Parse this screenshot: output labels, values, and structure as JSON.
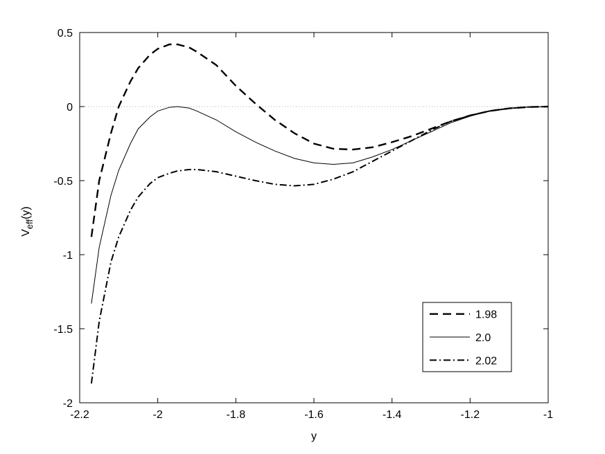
{
  "chart_data": {
    "type": "line",
    "xlabel": "y",
    "ylabel": [
      "V",
      "eff",
      "(y)"
    ],
    "x": [
      -2.17,
      -2.15,
      -2.12,
      -2.1,
      -2.07,
      -2.05,
      -2.02,
      -2.0,
      -1.97,
      -1.95,
      -1.92,
      -1.9,
      -1.85,
      -1.8,
      -1.75,
      -1.7,
      -1.65,
      -1.6,
      -1.55,
      -1.5,
      -1.45,
      -1.4,
      -1.35,
      -1.3,
      -1.25,
      -1.2,
      -1.15,
      -1.1,
      -1.05,
      -1.0
    ],
    "series": [
      {
        "name": "1.98",
        "color": "#000000",
        "linestyle": "dashed",
        "values": [
          -0.88,
          -0.5,
          -0.18,
          0.0,
          0.17,
          0.26,
          0.35,
          0.39,
          0.42,
          0.42,
          0.4,
          0.37,
          0.28,
          0.14,
          0.02,
          -0.09,
          -0.18,
          -0.25,
          -0.285,
          -0.29,
          -0.275,
          -0.24,
          -0.2,
          -0.15,
          -0.1,
          -0.06,
          -0.03,
          -0.012,
          -0.003,
          0.0
        ]
      },
      {
        "name": "2.0",
        "color": "#000000",
        "linestyle": "solid",
        "values": [
          -1.33,
          -0.95,
          -0.6,
          -0.43,
          -0.25,
          -0.15,
          -0.07,
          -0.03,
          -0.005,
          0.0,
          -0.01,
          -0.03,
          -0.09,
          -0.17,
          -0.24,
          -0.3,
          -0.35,
          -0.38,
          -0.39,
          -0.38,
          -0.34,
          -0.29,
          -0.23,
          -0.17,
          -0.11,
          -0.065,
          -0.03,
          -0.012,
          -0.003,
          0.0
        ]
      },
      {
        "name": "2.02",
        "color": "#000000",
        "linestyle": "dashdot",
        "values": [
          -1.87,
          -1.45,
          -1.05,
          -0.88,
          -0.7,
          -0.61,
          -0.52,
          -0.48,
          -0.45,
          -0.435,
          -0.425,
          -0.425,
          -0.44,
          -0.47,
          -0.5,
          -0.525,
          -0.535,
          -0.525,
          -0.49,
          -0.44,
          -0.37,
          -0.3,
          -0.23,
          -0.16,
          -0.1,
          -0.06,
          -0.03,
          -0.012,
          -0.003,
          0.0
        ]
      }
    ],
    "xlim": [
      -2.2,
      -1
    ],
    "xticks": [
      -2.2,
      -2,
      -1.8,
      -1.6,
      -1.4,
      -1.2,
      -1
    ],
    "ylim": [
      -2,
      0.5
    ],
    "yticks": [
      -2,
      -1.5,
      -1,
      -0.5,
      0,
      0.5
    ],
    "hlines": [
      0
    ],
    "grid": false,
    "legend": "lower right"
  }
}
